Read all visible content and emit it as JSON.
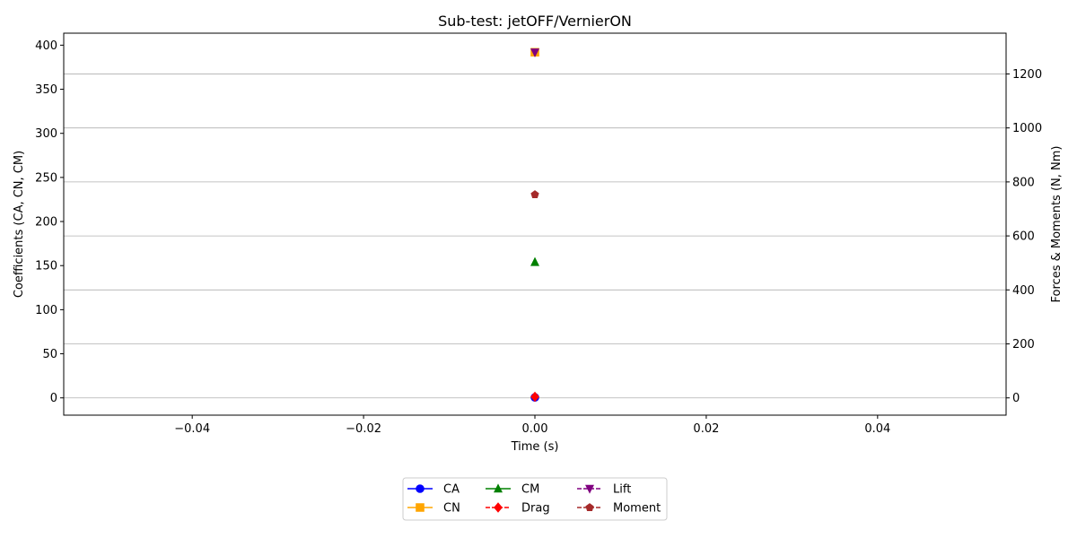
{
  "chart_data": {
    "type": "line",
    "title": "Sub-test: jetOFF/VernierON",
    "xlabel": "Time (s)",
    "ylabel_left": "Coefficients (CA, CN, CM)",
    "ylabel_right": "Forces & Moments (N, Nm)",
    "xlim": [
      -0.055,
      0.055
    ],
    "ylim_left": [
      -19.6,
      413.6
    ],
    "ylim_right": [
      -64,
      1351
    ],
    "x_ticks": [
      -0.04,
      -0.02,
      0.0,
      0.02,
      0.04
    ],
    "x_tick_labels": [
      "−0.04",
      "−0.02",
      "0.00",
      "0.02",
      "0.04"
    ],
    "y_left_ticks": [
      0,
      50,
      100,
      150,
      200,
      250,
      300,
      350,
      400
    ],
    "y_left_tick_labels": [
      "0",
      "50",
      "100",
      "150",
      "200",
      "250",
      "300",
      "350",
      "400"
    ],
    "y_right_ticks": [
      0,
      200,
      400,
      600,
      800,
      1000,
      1200
    ],
    "y_right_tick_labels": [
      "0",
      "200",
      "400",
      "600",
      "800",
      "1000",
      "1200"
    ],
    "grid": "horizontal-right-axis",
    "legend_position": "bottom-center",
    "series": [
      {
        "name": "CA",
        "axis": "left",
        "color": "#0000ff",
        "marker": "circle",
        "linestyle": "solid",
        "x": [
          0.0
        ],
        "y": [
          0.5
        ]
      },
      {
        "name": "CN",
        "axis": "left",
        "color": "#ffa500",
        "marker": "square",
        "linestyle": "solid",
        "x": [
          0.0
        ],
        "y": [
          392
        ]
      },
      {
        "name": "CM",
        "axis": "left",
        "color": "#008000",
        "marker": "triangle-up",
        "linestyle": "solid",
        "x": [
          0.0
        ],
        "y": [
          154
        ]
      },
      {
        "name": "Drag",
        "axis": "right",
        "color": "#ff0000",
        "marker": "diamond",
        "linestyle": "dashed",
        "x": [
          0.0
        ],
        "y": [
          4
        ]
      },
      {
        "name": "Lift",
        "axis": "right",
        "color": "#800080",
        "marker": "triangle-down",
        "linestyle": "dashed",
        "x": [
          0.0
        ],
        "y": [
          1280
        ]
      },
      {
        "name": "Moment",
        "axis": "right",
        "color": "#a52a2a",
        "marker": "pentagon",
        "linestyle": "dashed",
        "x": [
          0.0
        ],
        "y": [
          753
        ]
      }
    ]
  }
}
